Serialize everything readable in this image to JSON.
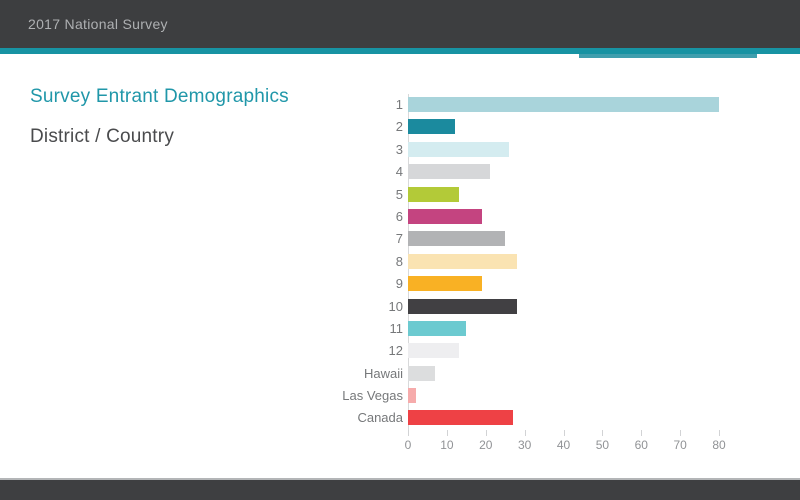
{
  "header": {
    "title": "2017 National Survey"
  },
  "accent_colors": {
    "strip": "#1793a3",
    "tab": "#3f9fae",
    "header_bg": "#3d3e40",
    "footer_bg": "#3e3f41"
  },
  "main": {
    "title": "Survey Entrant Demographics",
    "subtitle": "District / Country",
    "title_color": "#2097a9",
    "subtitle_color": "#4a4b4d"
  },
  "chart_data": {
    "type": "bar",
    "orientation": "horizontal",
    "title": "Survey Entrant Demographics",
    "subtitle": "District / Country",
    "categories": [
      "1",
      "2",
      "3",
      "4",
      "5",
      "6",
      "7",
      "8",
      "9",
      "10",
      "11",
      "12",
      "Hawaii",
      "Las Vegas",
      "Canada"
    ],
    "values": [
      80,
      12,
      26,
      21,
      13,
      19,
      25,
      28,
      19,
      28,
      15,
      13,
      7,
      2,
      27
    ],
    "bar_colors": [
      "#a9d4db",
      "#1b8a9e",
      "#d4ecf0",
      "#d6d7d9",
      "#b3ca38",
      "#c44480",
      "#b2b3b5",
      "#fae3b2",
      "#f9b124",
      "#414043",
      "#6ccad0",
      "#eeeef0",
      "#dcddde",
      "#f6abab",
      "#ee4145"
    ],
    "xlabel": "",
    "ylabel": "",
    "xlim": [
      0,
      80
    ],
    "x_ticks": [
      0,
      10,
      20,
      30,
      40,
      50,
      60,
      70,
      80
    ],
    "grid": false,
    "legend": false
  }
}
